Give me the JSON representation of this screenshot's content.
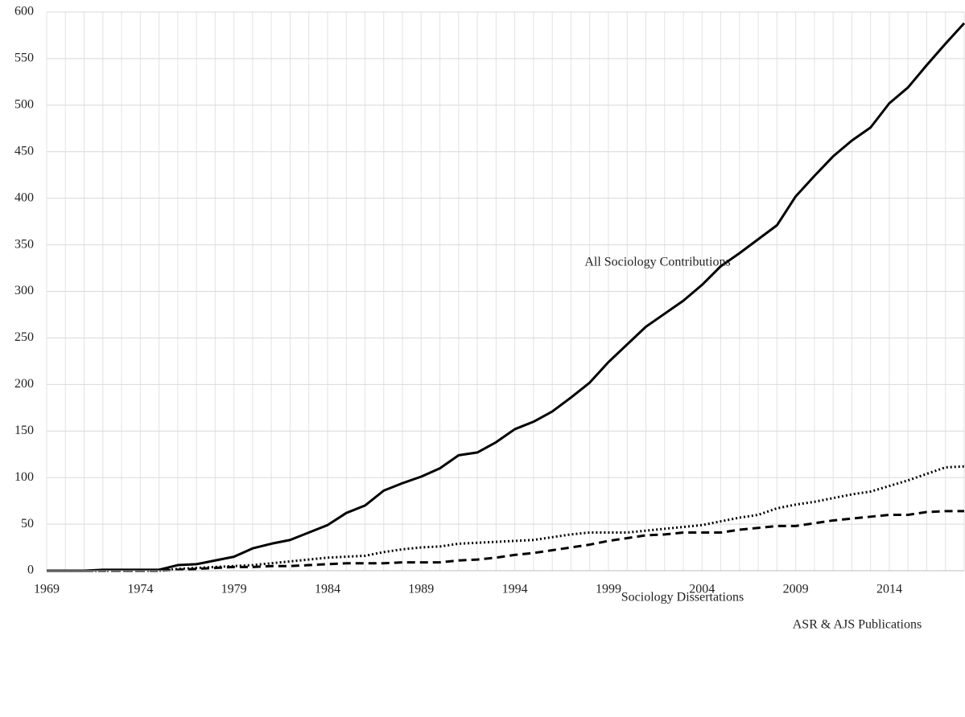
{
  "chart_data": {
    "type": "line",
    "categories": [
      "1969",
      null,
      null,
      null,
      null,
      "1974",
      null,
      null,
      null,
      null,
      "1979",
      null,
      null,
      null,
      null,
      "1984",
      null,
      null,
      null,
      null,
      "1989",
      null,
      null,
      null,
      null,
      "1994",
      null,
      null,
      null,
      null,
      "1999",
      null,
      null,
      null,
      null,
      "2004",
      null,
      null,
      null,
      null,
      "2009",
      null,
      null,
      null,
      null,
      "2014",
      null,
      null,
      null,
      null
    ],
    "series": [
      {
        "name": "All Sociology Contributions",
        "color": "#000000",
        "style": "solid",
        "values": [
          0,
          0,
          0,
          1,
          1,
          1,
          1,
          6,
          7,
          11,
          15,
          24,
          29,
          33,
          41,
          49,
          62,
          70,
          86,
          94,
          101,
          110,
          124,
          127,
          138,
          152,
          160,
          171,
          186,
          202,
          224,
          243,
          262,
          276,
          290,
          307,
          327,
          341,
          356,
          371,
          402,
          424,
          445,
          462,
          476,
          502,
          519,
          543,
          566,
          588
        ]
      },
      {
        "name": "Sociology Dissertations",
        "color": "#000000",
        "style": "dotted",
        "values": [
          0,
          0,
          0,
          0,
          0,
          0,
          0,
          2,
          3,
          4,
          5,
          6,
          8,
          10,
          12,
          14,
          15,
          16,
          20,
          23,
          25,
          26,
          29,
          30,
          31,
          32,
          33,
          36,
          39,
          41,
          41,
          41,
          43,
          45,
          47,
          49,
          53,
          57,
          60,
          67,
          71,
          74,
          78,
          82,
          85,
          91,
          97,
          104,
          111,
          112
        ]
      },
      {
        "name": "ASR & AJS Publications",
        "color": "#000000",
        "style": "dashed",
        "values": [
          0,
          0,
          0,
          0,
          0,
          0,
          0,
          1,
          2,
          3,
          4,
          4,
          5,
          5,
          6,
          7,
          8,
          8,
          8,
          9,
          9,
          9,
          11,
          12,
          14,
          17,
          19,
          22,
          25,
          28,
          32,
          35,
          38,
          39,
          41,
          41,
          41,
          44,
          46,
          48,
          48,
          51,
          54,
          56,
          58,
          60,
          60,
          63,
          64,
          64
        ]
      }
    ],
    "ylim": [
      0,
      600
    ],
    "yticks": [
      0,
      50,
      100,
      150,
      200,
      250,
      300,
      350,
      400,
      450,
      500,
      550,
      600
    ],
    "grid": true
  }
}
